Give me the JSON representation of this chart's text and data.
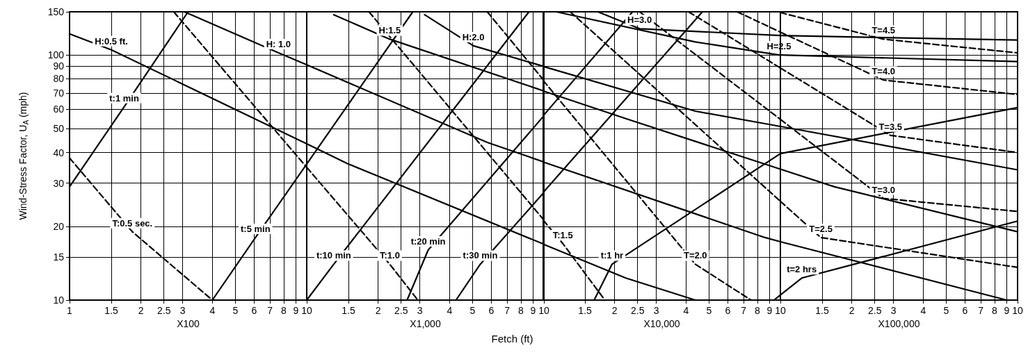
{
  "chart_data": [
    {
      "type": "line",
      "xlabel": "X100",
      "ylabel": "Wind-Stress Factor, U$_{A}$ (mph)",
      "log": "xy",
      "grid": true,
      "marker": "none",
      "line_style": "solid",
      "xlim": [
        1,
        10
      ],
      "ylim": [
        10,
        150
      ],
      "xticks": [
        1,
        1.5,
        2,
        2.5,
        3,
        4,
        5,
        6,
        7,
        8,
        9,
        10
      ],
      "yticks": [
        10,
        15,
        20,
        30,
        40,
        50,
        60,
        70,
        80,
        90,
        100,
        150
      ],
      "series": [
        {
          "name": "H:0.5 ft.",
          "color": "#000000",
          "x": [
            1,
            1.5,
            10
          ],
          "values": [
            122,
            105,
            43.4
          ]
        },
        {
          "name": "H: 1.0",
          "color": "#000000",
          "x": [
            3.05,
            7.6,
            10
          ],
          "values": [
            150,
            102,
            91.2
          ]
        },
        {
          "name": "T:0.5 sec.",
          "color": "#000000",
          "line_style": "dashed",
          "x": [
            1,
            1.84,
            4
          ],
          "values": [
            38,
            19,
            10
          ]
        },
        {
          "color": "#000000",
          "line_style": "dashed",
          "x": [
            2.75,
            10
          ],
          "values": [
            150,
            34.8
          ]
        },
        {
          "name": "t:1 min",
          "color": "#000000",
          "x": [
            1,
            1.7,
            3.16
          ],
          "values": [
            29,
            61.5,
            150
          ]
        },
        {
          "name": "t:5 min",
          "color": "#000000",
          "x": [
            4,
            6.08,
            10
          ],
          "values": [
            10,
            18,
            35.9
          ]
        }
      ]
    },
    {
      "type": "line",
      "xlabel": "X1,000",
      "annotations": [
        "Fetch (ft)"
      ],
      "log": "xy",
      "grid": true,
      "marker": "none",
      "line_style": "solid",
      "tick_labels": "x",
      "xlim": [
        1,
        10
      ],
      "ylim": [
        10,
        150
      ],
      "xticks": [
        1.5,
        2,
        2.5,
        3,
        4,
        5,
        6,
        7,
        8,
        9,
        10
      ],
      "yticks": [
        10,
        15,
        20,
        30,
        40,
        50,
        60,
        70,
        80,
        90,
        100,
        150
      ],
      "series": [
        {
          "color": "#000000",
          "x": [
            1,
            1.49,
            10
          ],
          "values": [
            43.4,
            36,
            16.9
          ]
        },
        {
          "color": "#000000",
          "x": [
            1,
            5.77,
            10
          ],
          "values": [
            91.2,
            44,
            36.6
          ]
        },
        {
          "name": "H:1.5",
          "color": "#000000",
          "x": [
            1.3,
            2.24,
            10
          ],
          "values": [
            146,
            116,
            71.3
          ]
        },
        {
          "name": "H:2.0",
          "color": "#000000",
          "x": [
            3.14,
            5.04,
            10
          ],
          "values": [
            146,
            109,
            89.8
          ]
        },
        {
          "name": "T:1.0",
          "color": "#000000",
          "line_style": "dashed",
          "x": [
            1,
            2.24,
            2.94
          ],
          "values": [
            34.8,
            14,
            10
          ]
        },
        {
          "color": "#000000",
          "line_style": "dashed",
          "x": [
            1.83,
            10
          ],
          "values": [
            150,
            21.2
          ]
        },
        {
          "color": "#000000",
          "line_style": "dashed",
          "x": [
            5.77,
            10
          ],
          "values": [
            150,
            78.7
          ]
        },
        {
          "color": "#000000",
          "x": [
            1,
            2.8
          ],
          "values": [
            35.9,
            150
          ]
        },
        {
          "name": "t:10 min",
          "color": "#000000",
          "x": [
            1,
            1.3,
            8.65
          ],
          "values": [
            10,
            14,
            150
          ]
        },
        {
          "name": "t:20 min",
          "color": "#000000",
          "x": [
            2.65,
            3.25,
            10
          ],
          "values": [
            10,
            16,
            56.5
          ]
        },
        {
          "name": "t:30 min",
          "color": "#000000",
          "x": [
            4.26,
            5.39,
            10
          ],
          "values": [
            10,
            14,
            27.5
          ]
        }
      ]
    },
    {
      "type": "line",
      "xlabel": "X10,000",
      "log": "xy",
      "grid": true,
      "marker": "none",
      "line_style": "solid",
      "tick_labels": "x",
      "xlim": [
        1,
        10
      ],
      "ylim": [
        10,
        150
      ],
      "xticks": [
        1.5,
        2,
        2.5,
        3,
        4,
        5,
        6,
        7,
        8,
        9,
        10
      ],
      "yticks": [
        10,
        15,
        20,
        30,
        40,
        50,
        60,
        70,
        80,
        90,
        100,
        150
      ],
      "series": [
        {
          "color": "#000000",
          "x": [
            1,
            2.23,
            4.38
          ],
          "values": [
            16.9,
            12.3,
            10
          ]
        },
        {
          "color": "#000000",
          "x": [
            1,
            8.61,
            10
          ],
          "values": [
            36.6,
            18,
            17.3
          ]
        },
        {
          "color": "#000000",
          "x": [
            1,
            2.23,
            10
          ],
          "values": [
            71.3,
            55,
            34.2
          ]
        },
        {
          "color": "#000000",
          "x": [
            1,
            4.38,
            10
          ],
          "values": [
            89.8,
            59,
            51.1
          ]
        },
        {
          "name": "H=2.5",
          "color": "#000000",
          "x": [
            1.135,
            4.38,
            9.86,
            10
          ],
          "values": [
            150,
            113,
            100,
            100
          ]
        },
        {
          "name": "H=3.0",
          "color": "#000000",
          "x": [
            1.7,
            2.55,
            10
          ],
          "values": [
            150,
            128,
            120
          ]
        },
        {
          "name": "T:1.5",
          "color": "#000000",
          "line_style": "dashed",
          "x": [
            1,
            1.21,
            1.82
          ],
          "values": [
            21.2,
            17,
            10
          ]
        },
        {
          "name": "T=2.0",
          "color": "#000000",
          "line_style": "dashed",
          "x": [
            1,
            4.38,
            7.52
          ],
          "values": [
            78.7,
            14,
            10
          ]
        },
        {
          "color": "#000000",
          "line_style": "dashed",
          "x": [
            1.3,
            10
          ],
          "values": [
            150,
            25.3
          ]
        },
        {
          "color": "#000000",
          "line_style": "dashed",
          "x": [
            2.55,
            10
          ],
          "values": [
            150,
            54.6
          ]
        },
        {
          "color": "#000000",
          "line_style": "dashed",
          "x": [
            4.1,
            10
          ],
          "values": [
            150,
            88.5
          ]
        },
        {
          "color": "#000000",
          "line_style": "dashed",
          "x": [
            6.57,
            10
          ],
          "values": [
            150,
            124
          ]
        },
        {
          "color": "#000000",
          "x": [
            1,
            2.38
          ],
          "values": [
            56.5,
            150
          ]
        },
        {
          "color": "#000000",
          "x": [
            1,
            4.69
          ],
          "values": [
            27.5,
            150
          ]
        },
        {
          "name": "t:1 hr",
          "color": "#000000",
          "x": [
            1.64,
            1.95,
            10
          ],
          "values": [
            10,
            14,
            39.6
          ]
        },
        {
          "color": "#000000",
          "x": [
            9.4,
            10
          ],
          "values": [
            10,
            10.5
          ]
        }
      ]
    },
    {
      "type": "line",
      "xlabel": "X100,000",
      "log": "xy",
      "grid": true,
      "marker": "none",
      "line_style": "solid",
      "tick_labels": "x",
      "xlim": [
        1,
        10
      ],
      "ylim": [
        10,
        150
      ],
      "xticks": [
        1.5,
        2,
        2.5,
        3,
        4,
        5,
        6,
        7,
        8,
        9,
        10
      ],
      "yticks": [
        10,
        15,
        20,
        30,
        40,
        50,
        60,
        70,
        80,
        90,
        100,
        150
      ],
      "series": [
        {
          "color": "#000000",
          "x": [
            1,
            9
          ],
          "values": [
            17.3,
            10
          ]
        },
        {
          "color": "#000000",
          "x": [
            1,
            1.69,
            10
          ],
          "values": [
            34.2,
            29,
            19
          ]
        },
        {
          "color": "#000000",
          "x": [
            1,
            10
          ],
          "values": [
            51.1,
            34
          ]
        },
        {
          "color": "#000000",
          "x": [
            1,
            10
          ],
          "values": [
            100,
            94
          ]
        },
        {
          "color": "#000000",
          "x": [
            1,
            10
          ],
          "values": [
            120,
            115
          ]
        },
        {
          "name": "T=2.5",
          "color": "#000000",
          "line_style": "dashed",
          "x": [
            1,
            1.48,
            10
          ],
          "values": [
            25.3,
            18,
            13.6
          ]
        },
        {
          "name": "T=3.0",
          "color": "#000000",
          "line_style": "dashed",
          "x": [
            1,
            2.72,
            10
          ],
          "values": [
            54.6,
            26,
            23
          ]
        },
        {
          "name": "T=3.5",
          "color": "#000000",
          "line_style": "dashed",
          "x": [
            1,
            2.91,
            10
          ],
          "values": [
            88.5,
            47,
            40
          ]
        },
        {
          "name": "T=4.0",
          "color": "#000000",
          "line_style": "dashed",
          "x": [
            1,
            2.72,
            10
          ],
          "values": [
            124,
            79,
            69
          ]
        },
        {
          "name": "T=4.5",
          "color": "#000000",
          "line_style": "dashed",
          "x": [
            1,
            2.72,
            10
          ],
          "values": [
            149,
            116,
            102
          ]
        },
        {
          "color": "#000000",
          "x": [
            1,
            10
          ],
          "values": [
            39.6,
            61
          ]
        },
        {
          "name": "t=2 hrs",
          "color": "#000000",
          "x": [
            1,
            1.23,
            10
          ],
          "values": [
            10.5,
            12.3,
            21
          ]
        }
      ]
    }
  ]
}
